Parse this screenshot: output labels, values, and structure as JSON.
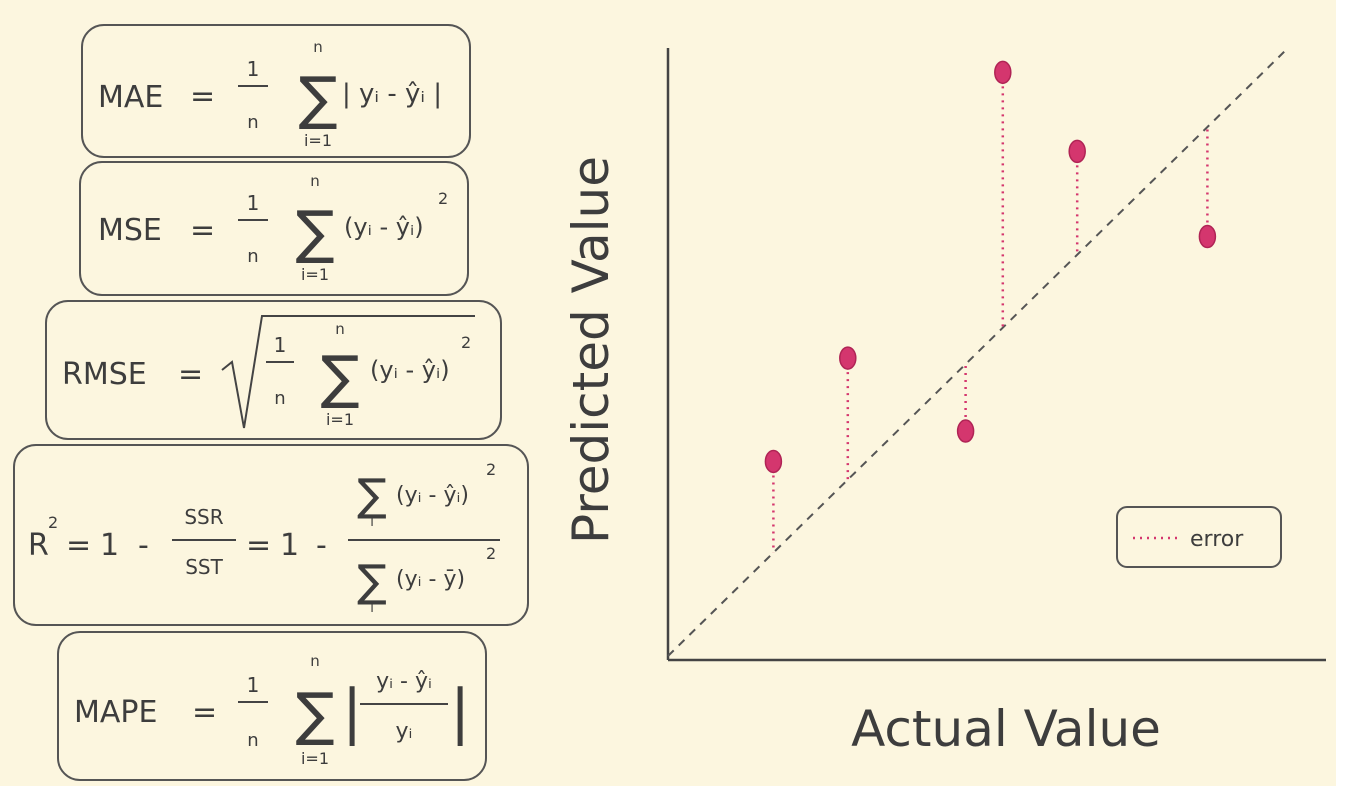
{
  "colors": {
    "background": "#fcf6df",
    "ink": "#3d3d3d",
    "point": "#d4366e",
    "error_line": "#d4366e",
    "diagonal": "#555555"
  },
  "formulas": {
    "mae": {
      "name": "MAE",
      "eq": "=",
      "frac_num": "1",
      "frac_den": "n",
      "sum_top": "n",
      "sum_sym": "∑",
      "sum_bottom": "i=1",
      "body": "| yᵢ - ŷᵢ |"
    },
    "mse": {
      "name": "MSE",
      "eq": "=",
      "frac_num": "1",
      "frac_den": "n",
      "sum_top": "n",
      "sum_sym": "∑",
      "sum_bottom": "i=1",
      "body": "(yᵢ - ŷᵢ)",
      "power": "2"
    },
    "rmse": {
      "name": "RMSE",
      "eq": "=",
      "root": "√",
      "frac_num": "1",
      "frac_den": "n",
      "sum_top": "n",
      "sum_sym": "∑",
      "sum_bottom": "i=1",
      "body": "(yᵢ - ŷᵢ)",
      "power": "2"
    },
    "r2": {
      "name": "R",
      "name_power": "2",
      "eq": "=",
      "one": "1",
      "minus": "-",
      "ssr": "SSR",
      "sst": "SST",
      "eq2": "=",
      "one2": "1",
      "minus2": "-",
      "sum_sym": "∑",
      "sum_index": "i",
      "num_body": "(yᵢ - ŷᵢ)",
      "num_power": "2",
      "den_body": "(yᵢ - ȳ)",
      "den_power": "2"
    },
    "mape": {
      "name": "MAPE",
      "eq": "=",
      "frac_num": "1",
      "frac_den": "n",
      "sum_top": "n",
      "sum_sym": "∑",
      "sum_bottom": "i=1",
      "inner_num": "yᵢ - ŷᵢ",
      "inner_den": "yᵢ",
      "bar": "|"
    }
  },
  "chart": {
    "ylabel": "Predicted Value",
    "xlabel": "Actual Value",
    "legend_label": "error",
    "diagonal": "dashed",
    "legend_position": "bottom-right"
  },
  "chart_data": {
    "type": "scatter",
    "xlabel": "Actual Value",
    "ylabel": "Predicted Value",
    "xlim": [
      0,
      10
    ],
    "ylim": [
      0,
      10
    ],
    "reference_line": {
      "from": [
        0,
        0
      ],
      "to": [
        10,
        10
      ]
    },
    "points": [
      {
        "actual": 1.7,
        "predicted": 3.2
      },
      {
        "actual": 2.9,
        "predicted": 4.9
      },
      {
        "actual": 4.8,
        "predicted": 3.7
      },
      {
        "actual": 5.4,
        "predicted": 9.6
      },
      {
        "actual": 6.6,
        "predicted": 8.3
      },
      {
        "actual": 8.7,
        "predicted": 6.9
      }
    ],
    "legend": [
      "error"
    ]
  }
}
